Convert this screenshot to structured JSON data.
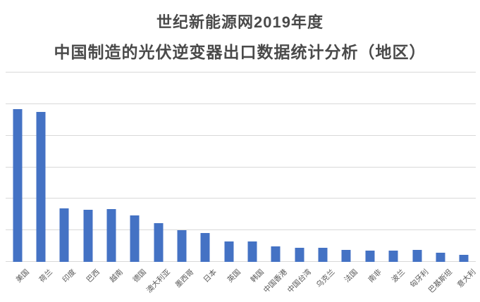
{
  "title": {
    "line1": "世纪新能源网2019年度",
    "line2": "中国制造的光伏逆变器出口数据统计分析（地区）"
  },
  "chart_data": {
    "type": "bar",
    "title": "世纪新能源网2019年度 中国制造的光伏逆变器出口数据统计分析（地区）",
    "categories": [
      "美国",
      "荷兰",
      "印度",
      "巴西",
      "越南",
      "德国",
      "澳大利亚",
      "墨西哥",
      "日本",
      "英国",
      "韩国",
      "中国香港",
      "中国台湾",
      "乌克兰",
      "法国",
      "南非",
      "波兰",
      "匈牙利",
      "巴基斯坦",
      "意大利"
    ],
    "values": [
      4.84,
      4.75,
      1.7,
      1.66,
      1.68,
      1.47,
      1.22,
      1.0,
      0.92,
      0.64,
      0.64,
      0.49,
      0.44,
      0.44,
      0.39,
      0.36,
      0.36,
      0.38,
      0.3,
      0.23
    ],
    "value_note": "relative units estimated from gridlines; no y-axis tick labels are shown in the chart",
    "xlabel": "",
    "ylabel": "",
    "ylim": [
      0,
      6
    ],
    "gridline_interval": 1,
    "grid": true,
    "legend": false,
    "y_axis_labels_visible": false,
    "x_label_rotation_deg": 45,
    "bar_color": "#4472C4",
    "gridline_color": "#D9D9D9"
  },
  "colors": {
    "background": "#ffffff",
    "bar": "#4472C4",
    "gridline": "#D9D9D9",
    "title_text": "#4a4a4a",
    "axis_label_text": "#595959"
  }
}
